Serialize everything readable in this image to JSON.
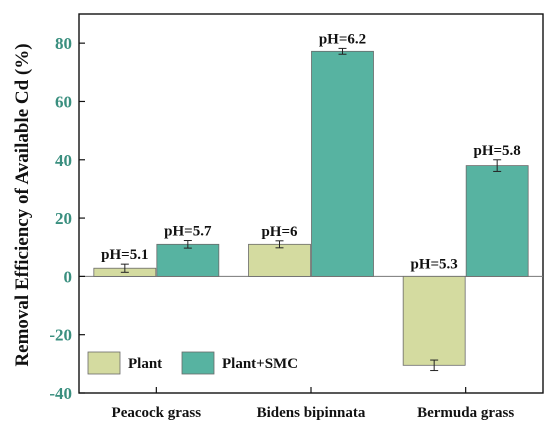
{
  "chart_data": {
    "type": "bar",
    "title": "",
    "xlabel": "",
    "ylabel": "Removal Efficiency of Available Cd (%)",
    "ylim": [
      -40,
      90
    ],
    "yticks": [
      80,
      60,
      40,
      20,
      0,
      -20,
      -40
    ],
    "categories": [
      "Peacock grass",
      "Bidens bipinnata",
      "Bermuda grass"
    ],
    "series": [
      {
        "name": "Plant",
        "color": "#d4dba0",
        "values": [
          2.8,
          11.0,
          -30.5
        ],
        "errors": [
          1.4,
          1.2,
          1.8
        ],
        "labels": [
          "pH=5.1",
          "pH=6",
          "pH=5.3"
        ]
      },
      {
        "name": "Plant+SMC",
        "color": "#57b3a1",
        "values": [
          11.0,
          77.2,
          38.0
        ],
        "errors": [
          1.3,
          1.0,
          2.0
        ],
        "labels": [
          "pH=5.7",
          "pH=6.2",
          "pH=5.8"
        ]
      }
    ],
    "legend": "bottom-left",
    "grid": false
  }
}
